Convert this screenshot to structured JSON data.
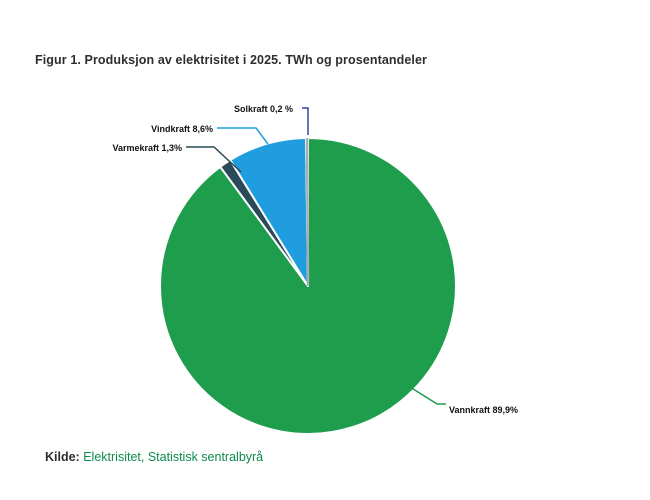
{
  "title": "Figur 1. Produksjon av elektrisitet i 2025. TWh og prosentandeler",
  "source": {
    "prefix": "Kilde:",
    "text": "Elektrisitet, Statistisk sentralbyrå",
    "link_color": "#0e8a4e"
  },
  "chart_data": {
    "type": "pie",
    "title": "Figur 1. Produksjon av elektrisitet i 2025. TWh og prosentandeler",
    "unit": "prosent",
    "start_angle_deg": 0,
    "direction": "clockwise",
    "legend_position": "callout-labels",
    "slices": [
      {
        "name": "Vannkraft",
        "label": "Vannkraft 89,9%",
        "value_pct": 89.9,
        "color": "#1e9d4d",
        "leader_color": "#1e9d4d"
      },
      {
        "name": "Varmekraft",
        "label": "Varmekraft 1,3%",
        "value_pct": 1.3,
        "color": "#2b4a59",
        "leader_color": "#2b4a59"
      },
      {
        "name": "Vindkraft",
        "label": "Vindkraft 8,6%",
        "value_pct": 8.6,
        "color": "#1f9dde",
        "leader_color": "#1f9dde"
      },
      {
        "name": "Solkraft",
        "label": "Solkraft 0,2 %",
        "value_pct": 0.2,
        "color": "#a5adb5",
        "leader_color": "#3a43a4"
      }
    ]
  }
}
